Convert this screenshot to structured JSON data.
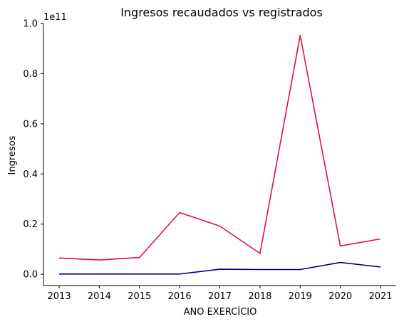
{
  "chart_data": {
    "type": "line",
    "title": "Ingresos recaudados vs registrados",
    "xlabel": "ANO EXERCÍCIO",
    "ylabel": "Ingresos",
    "y_offset_label": "1e11",
    "x": [
      2013,
      2014,
      2015,
      2016,
      2017,
      2018,
      2019,
      2020,
      2021
    ],
    "x_tick_labels": [
      "2013",
      "2014",
      "2015",
      "2016",
      "2017",
      "2018",
      "2019",
      "2020",
      "2021"
    ],
    "y_ticks": [
      0.0,
      0.2,
      0.4,
      0.6,
      0.8,
      1.0
    ],
    "y_tick_labels": [
      "0.0",
      "0.2",
      "0.4",
      "0.6",
      "0.8",
      "1.0"
    ],
    "ylim": [
      -0.045,
      1.0
    ],
    "series": [
      {
        "color": "#dc143c",
        "values": [
          0.065,
          0.057,
          0.067,
          0.246,
          0.192,
          0.083,
          0.953,
          0.113,
          0.141
        ]
      },
      {
        "color": "#000080",
        "values": [
          0.001,
          0.001,
          0.001,
          0.001,
          0.02,
          0.019,
          0.019,
          0.047,
          0.029
        ]
      }
    ],
    "grid": false,
    "legend": "none"
  }
}
